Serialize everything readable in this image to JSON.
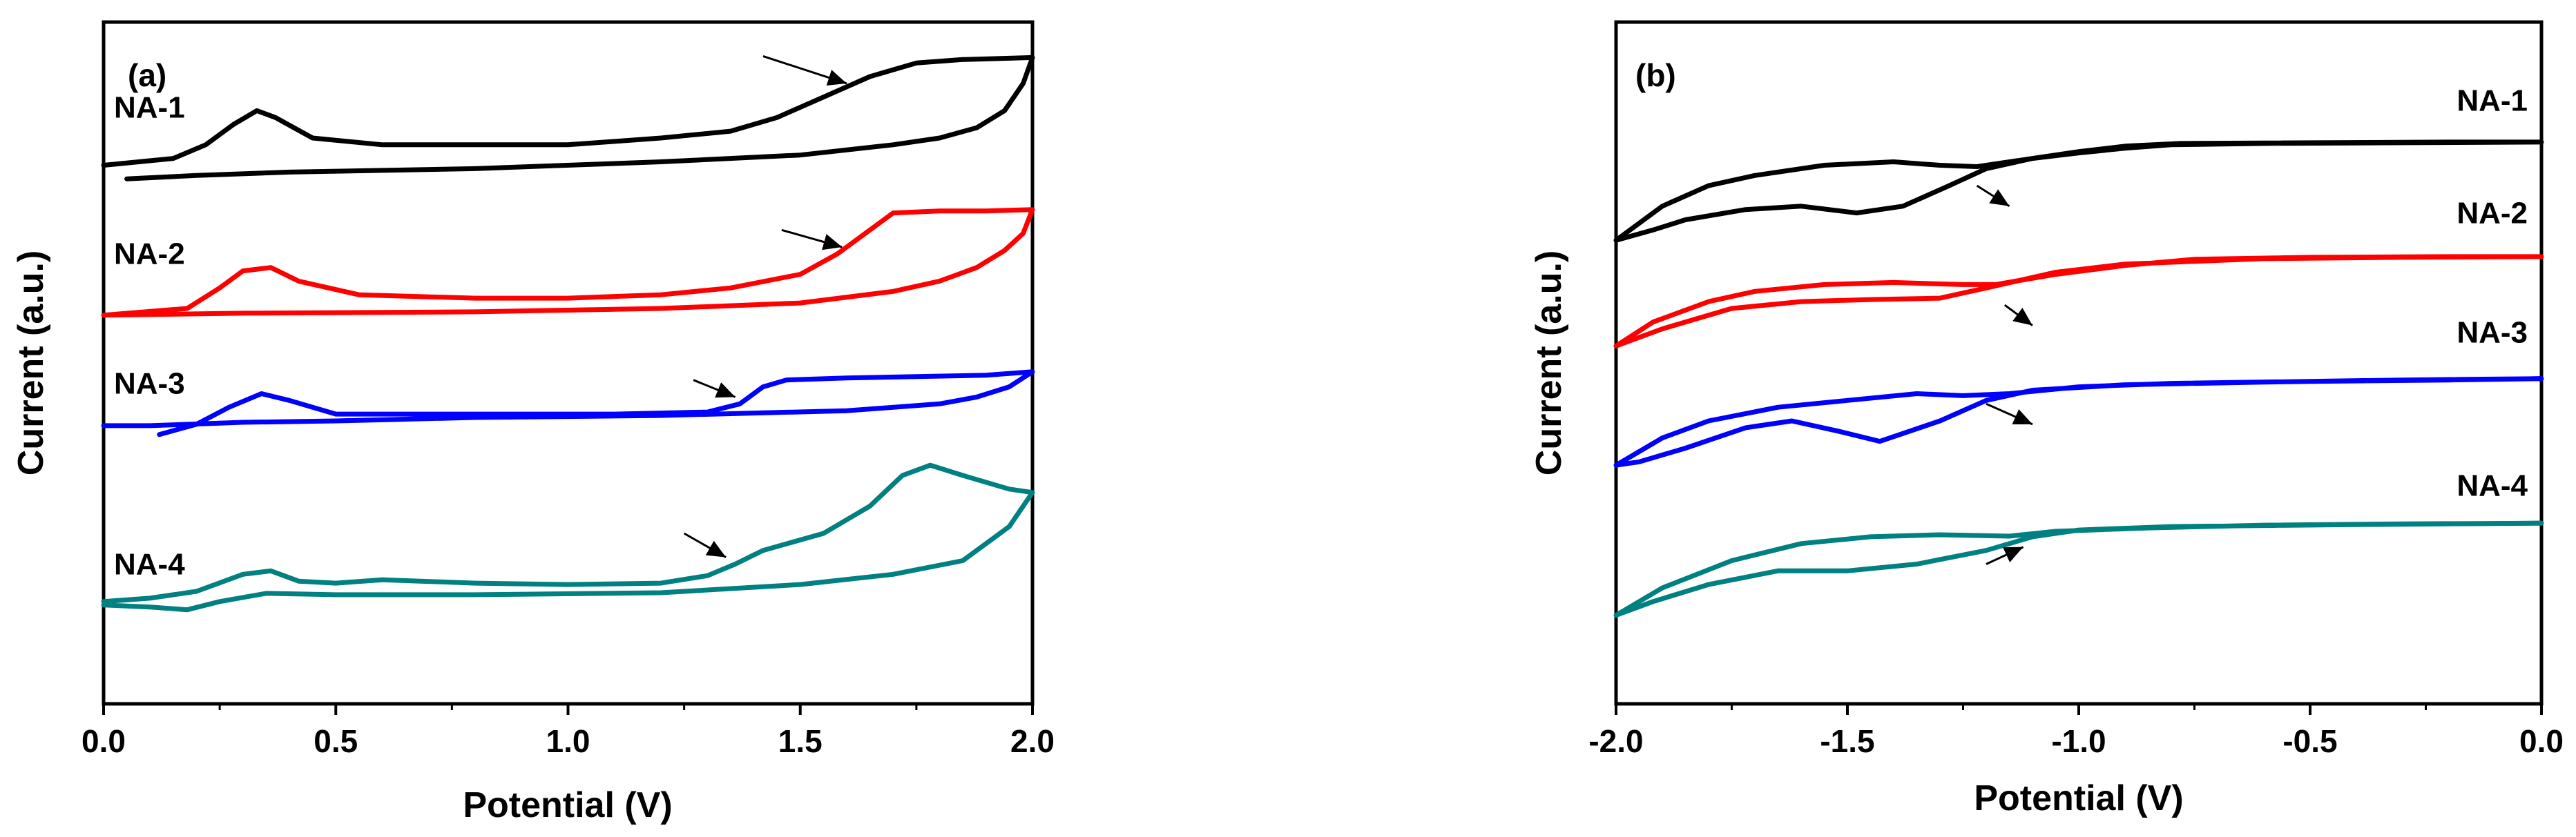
{
  "chart_data": [
    {
      "type": "line",
      "panel_label": "(a)",
      "xlabel": "Potential (V)",
      "ylabel": "Current (a.u.)",
      "xlim": [
        0.0,
        2.0
      ],
      "ylim": [
        0,
        100
      ],
      "xticks": [
        0.0,
        0.5,
        1.0,
        1.5,
        2.0
      ],
      "xtick_labels": [
        "0.0",
        "0.5",
        "1.0",
        "1.5",
        "2.0"
      ],
      "label_side": "left",
      "series": [
        {
          "name": "NA-1",
          "color": "#000000",
          "points": [
            [
              0.0,
              79
            ],
            [
              0.15,
              80
            ],
            [
              0.22,
              82
            ],
            [
              0.28,
              85
            ],
            [
              0.33,
              87
            ],
            [
              0.37,
              86
            ],
            [
              0.45,
              83
            ],
            [
              0.6,
              82
            ],
            [
              0.8,
              82
            ],
            [
              1.0,
              82
            ],
            [
              1.2,
              83
            ],
            [
              1.35,
              84
            ],
            [
              1.45,
              86
            ],
            [
              1.55,
              89
            ],
            [
              1.65,
              92
            ],
            [
              1.75,
              94
            ],
            [
              1.85,
              94.5
            ],
            [
              1.95,
              94.7
            ],
            [
              2.0,
              94.8
            ],
            [
              1.98,
              91
            ],
            [
              1.94,
              87
            ],
            [
              1.88,
              84.5
            ],
            [
              1.8,
              83
            ],
            [
              1.7,
              82
            ],
            [
              1.5,
              80.5
            ],
            [
              1.2,
              79.5
            ],
            [
              0.8,
              78.5
            ],
            [
              0.4,
              78
            ],
            [
              0.2,
              77.5
            ],
            [
              0.05,
              77
            ]
          ],
          "label_y": 86,
          "arrow": {
            "from": [
              1.42,
              95
            ],
            "to": [
              1.6,
              91
            ]
          }
        },
        {
          "name": "NA-2",
          "color": "#ff0000",
          "points": [
            [
              0.0,
              57
            ],
            [
              0.18,
              58
            ],
            [
              0.25,
              61
            ],
            [
              0.3,
              63.5
            ],
            [
              0.36,
              64
            ],
            [
              0.42,
              62
            ],
            [
              0.55,
              60
            ],
            [
              0.8,
              59.5
            ],
            [
              1.0,
              59.5
            ],
            [
              1.2,
              60
            ],
            [
              1.35,
              61
            ],
            [
              1.5,
              63
            ],
            [
              1.58,
              66
            ],
            [
              1.65,
              69.5
            ],
            [
              1.7,
              72
            ],
            [
              1.8,
              72.3
            ],
            [
              1.9,
              72.3
            ],
            [
              2.0,
              72.5
            ],
            [
              1.98,
              69
            ],
            [
              1.94,
              66.5
            ],
            [
              1.88,
              64
            ],
            [
              1.8,
              62
            ],
            [
              1.7,
              60.5
            ],
            [
              1.5,
              58.8
            ],
            [
              1.2,
              58
            ],
            [
              0.8,
              57.5
            ],
            [
              0.3,
              57.3
            ],
            [
              0.0,
              57
            ]
          ],
          "label_y": 64.5,
          "arrow": {
            "from": [
              1.46,
              69.5
            ],
            "to": [
              1.59,
              67
            ]
          }
        },
        {
          "name": "NA-3",
          "color": "#0000ff",
          "points": [
            [
              0.12,
              39.5
            ],
            [
              0.2,
              41
            ],
            [
              0.27,
              43.5
            ],
            [
              0.34,
              45.5
            ],
            [
              0.4,
              44.5
            ],
            [
              0.5,
              42.5
            ],
            [
              0.8,
              42.5
            ],
            [
              1.1,
              42.5
            ],
            [
              1.3,
              42.8
            ],
            [
              1.37,
              44
            ],
            [
              1.42,
              46.5
            ],
            [
              1.47,
              47.5
            ],
            [
              1.6,
              47.8
            ],
            [
              1.75,
              48
            ],
            [
              1.9,
              48.2
            ],
            [
              2.0,
              48.7
            ],
            [
              1.95,
              46.5
            ],
            [
              1.88,
              45
            ],
            [
              1.8,
              44
            ],
            [
              1.6,
              43
            ],
            [
              1.2,
              42.3
            ],
            [
              0.8,
              42
            ],
            [
              0.5,
              41.5
            ],
            [
              0.3,
              41.3
            ],
            [
              0.1,
              40.8
            ],
            [
              0.0,
              40.8
            ]
          ],
          "label_y": 45.5,
          "arrow": {
            "from": [
              1.27,
              47.5
            ],
            "to": [
              1.36,
              45
            ]
          }
        },
        {
          "name": "NA-4",
          "color": "#008080",
          "points": [
            [
              0.0,
              15
            ],
            [
              0.1,
              15.5
            ],
            [
              0.2,
              16.5
            ],
            [
              0.3,
              19
            ],
            [
              0.36,
              19.5
            ],
            [
              0.42,
              18
            ],
            [
              0.5,
              17.7
            ],
            [
              0.6,
              18.2
            ],
            [
              0.8,
              17.7
            ],
            [
              1.0,
              17.5
            ],
            [
              1.2,
              17.7
            ],
            [
              1.3,
              18.8
            ],
            [
              1.36,
              20.5
            ],
            [
              1.42,
              22.5
            ],
            [
              1.55,
              25
            ],
            [
              1.65,
              29
            ],
            [
              1.72,
              33.5
            ],
            [
              1.78,
              35
            ],
            [
              1.85,
              33.5
            ],
            [
              1.95,
              31.5
            ],
            [
              2.0,
              31
            ],
            [
              1.95,
              26
            ],
            [
              1.85,
              21
            ],
            [
              1.7,
              19
            ],
            [
              1.5,
              17.5
            ],
            [
              1.2,
              16.3
            ],
            [
              0.8,
              16
            ],
            [
              0.5,
              16
            ],
            [
              0.35,
              16.2
            ],
            [
              0.25,
              15
            ],
            [
              0.18,
              13.8
            ],
            [
              0.1,
              14.2
            ],
            [
              0.0,
              14.5
            ]
          ],
          "label_y": 19,
          "arrow": {
            "from": [
              1.25,
              25
            ],
            "to": [
              1.34,
              21.5
            ]
          }
        }
      ]
    },
    {
      "type": "line",
      "panel_label": "(b)",
      "xlabel": "Potential (V)",
      "ylabel": "Current (a.u.)",
      "xlim": [
        -2.0,
        0.0
      ],
      "ylim": [
        0,
        100
      ],
      "xticks": [
        -2.0,
        -1.5,
        -1.0,
        -0.5,
        0.0
      ],
      "xtick_labels": [
        "-2.0",
        "-1.5",
        "-1.0",
        "-0.5",
        "0.0"
      ],
      "label_side": "right",
      "series": [
        {
          "name": "NA-1",
          "color": "#000000",
          "points": [
            [
              -2.0,
              68
            ],
            [
              -1.9,
              73
            ],
            [
              -1.8,
              76
            ],
            [
              -1.7,
              77.5
            ],
            [
              -1.55,
              79
            ],
            [
              -1.4,
              79.5
            ],
            [
              -1.3,
              79
            ],
            [
              -1.22,
              78.8
            ],
            [
              -1.1,
              80
            ],
            [
              -1.0,
              81
            ],
            [
              -0.9,
              81.8
            ],
            [
              -0.78,
              82.2
            ],
            [
              -0.5,
              82.3
            ],
            [
              -0.2,
              82.4
            ],
            [
              0.0,
              82.4
            ],
            [
              -0.3,
              82.3
            ],
            [
              -0.6,
              82.2
            ],
            [
              -0.8,
              82
            ],
            [
              -0.9,
              81.5
            ],
            [
              -1.0,
              80.8
            ],
            [
              -1.1,
              80
            ],
            [
              -1.2,
              78.5
            ],
            [
              -1.28,
              76
            ],
            [
              -1.38,
              73
            ],
            [
              -1.48,
              72
            ],
            [
              -1.6,
              73
            ],
            [
              -1.72,
              72.5
            ],
            [
              -1.85,
              71
            ],
            [
              -1.92,
              69.5
            ],
            [
              -2.0,
              68
            ]
          ],
          "label_y": 87,
          "arrow": {
            "from": [
              -1.22,
              76
            ],
            "to": [
              -1.15,
              73
            ]
          }
        },
        {
          "name": "NA-2",
          "color": "#ff0000",
          "points": [
            [
              -2.0,
              52.5
            ],
            [
              -1.92,
              56
            ],
            [
              -1.8,
              59
            ],
            [
              -1.7,
              60.5
            ],
            [
              -1.55,
              61.5
            ],
            [
              -1.4,
              61.8
            ],
            [
              -1.25,
              61.5
            ],
            [
              -1.18,
              61.5
            ],
            [
              -1.05,
              63
            ],
            [
              -0.9,
              64.3
            ],
            [
              -0.75,
              65.2
            ],
            [
              -0.5,
              65.5
            ],
            [
              -0.2,
              65.6
            ],
            [
              0.0,
              65.6
            ],
            [
              -0.3,
              65.5
            ],
            [
              -0.6,
              65.3
            ],
            [
              -0.9,
              64.5
            ],
            [
              -1.05,
              63.3
            ],
            [
              -1.2,
              61
            ],
            [
              -1.3,
              59.5
            ],
            [
              -1.45,
              59.3
            ],
            [
              -1.6,
              59
            ],
            [
              -1.75,
              58
            ],
            [
              -1.9,
              55
            ],
            [
              -2.0,
              52.5
            ]
          ],
          "label_y": 70.5,
          "arrow": {
            "from": [
              -1.16,
              58.5
            ],
            "to": [
              -1.1,
              55.5
            ]
          }
        },
        {
          "name": "NA-3",
          "color": "#0000ff",
          "points": [
            [
              -2.0,
              35
            ],
            [
              -1.9,
              39
            ],
            [
              -1.8,
              41.5
            ],
            [
              -1.65,
              43.5
            ],
            [
              -1.5,
              44.5
            ],
            [
              -1.35,
              45.5
            ],
            [
              -1.25,
              45.2
            ],
            [
              -1.15,
              45.5
            ],
            [
              -1.0,
              46.5
            ],
            [
              -0.8,
              47
            ],
            [
              -0.5,
              47.3
            ],
            [
              -0.2,
              47.5
            ],
            [
              0.0,
              47.7
            ],
            [
              -0.3,
              47.5
            ],
            [
              -0.6,
              47.2
            ],
            [
              -0.9,
              46.8
            ],
            [
              -1.1,
              46
            ],
            [
              -1.2,
              44.5
            ],
            [
              -1.3,
              41.5
            ],
            [
              -1.43,
              38.5
            ],
            [
              -1.52,
              40
            ],
            [
              -1.62,
              41.5
            ],
            [
              -1.72,
              40.5
            ],
            [
              -1.85,
              37.5
            ],
            [
              -1.95,
              35.5
            ],
            [
              -2.0,
              35
            ]
          ],
          "label_y": 53,
          "arrow": {
            "from": [
              -1.2,
              44
            ],
            "to": [
              -1.1,
              41
            ]
          }
        },
        {
          "name": "NA-4",
          "color": "#008080",
          "points": [
            [
              -2.0,
              13
            ],
            [
              -1.9,
              17
            ],
            [
              -1.75,
              21
            ],
            [
              -1.6,
              23.5
            ],
            [
              -1.45,
              24.5
            ],
            [
              -1.3,
              24.8
            ],
            [
              -1.15,
              24.6
            ],
            [
              -1.05,
              25.3
            ],
            [
              -0.85,
              25.8
            ],
            [
              -0.6,
              26.2
            ],
            [
              -0.3,
              26.4
            ],
            [
              0.0,
              26.5
            ],
            [
              -0.4,
              26.3
            ],
            [
              -0.8,
              26
            ],
            [
              -1.0,
              25.5
            ],
            [
              -1.1,
              24.5
            ],
            [
              -1.2,
              22.5
            ],
            [
              -1.35,
              20.5
            ],
            [
              -1.5,
              19.5
            ],
            [
              -1.65,
              19.5
            ],
            [
              -1.8,
              17.5
            ],
            [
              -1.92,
              15
            ],
            [
              -2.0,
              13
            ]
          ],
          "label_y": 30.5,
          "arrow": {
            "from": [
              -1.2,
              20.5
            ],
            "to": [
              -1.12,
              23
            ]
          }
        }
      ]
    }
  ]
}
